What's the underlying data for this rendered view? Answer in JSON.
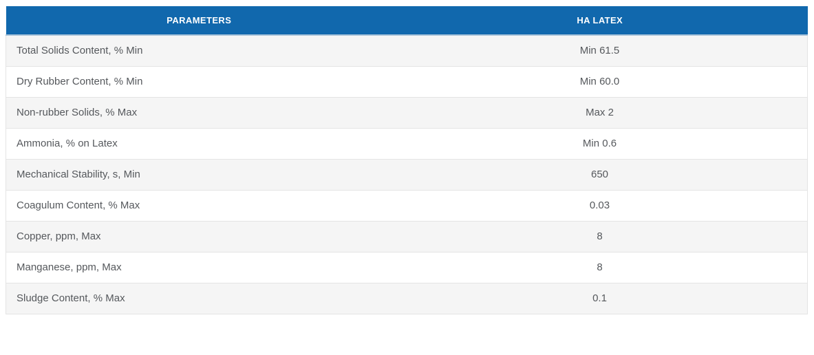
{
  "table": {
    "header": {
      "parameters": "PARAMETERS",
      "product": "HA LATEX"
    },
    "rows": [
      {
        "parameter": "Total Solids Content, % Min",
        "value": "Min 61.5"
      },
      {
        "parameter": "Dry Rubber Content, % Min",
        "value": "Min 60.0"
      },
      {
        "parameter": "Non-rubber Solids, % Max",
        "value": "Max 2"
      },
      {
        "parameter": "Ammonia, % on Latex",
        "value": "Min 0.6"
      },
      {
        "parameter": "Mechanical Stability, s, Min",
        "value": "650"
      },
      {
        "parameter": "Coagulum Content, % Max",
        "value": "0.03"
      },
      {
        "parameter": "Copper, ppm, Max",
        "value": "8"
      },
      {
        "parameter": "Manganese, ppm, Max",
        "value": "8"
      },
      {
        "parameter": "Sludge Content, % Max",
        "value": "0.1"
      }
    ]
  },
  "colors": {
    "header_bg": "#1168ad",
    "header_text": "#ffffff",
    "row_stripe_bg": "#f5f5f5",
    "row_bg": "#ffffff",
    "row_border": "#e4e4e4",
    "header_bottom_border": "#aac4da",
    "body_text": "#55585c"
  },
  "chart_data": {
    "type": "table",
    "columns": [
      "PARAMETERS",
      "HA LATEX"
    ],
    "rows": [
      [
        "Total Solids Content, % Min",
        "Min 61.5"
      ],
      [
        "Dry Rubber Content, % Min",
        "Min 60.0"
      ],
      [
        "Non-rubber Solids, % Max",
        "Max 2"
      ],
      [
        "Ammonia, % on Latex",
        "Min 0.6"
      ],
      [
        "Mechanical Stability, s, Min",
        "650"
      ],
      [
        "Coagulum Content, % Max",
        "0.03"
      ],
      [
        "Copper, ppm, Max",
        "8"
      ],
      [
        "Manganese, ppm, Max",
        "8"
      ],
      [
        "Sludge Content, % Max",
        "0.1"
      ]
    ]
  }
}
